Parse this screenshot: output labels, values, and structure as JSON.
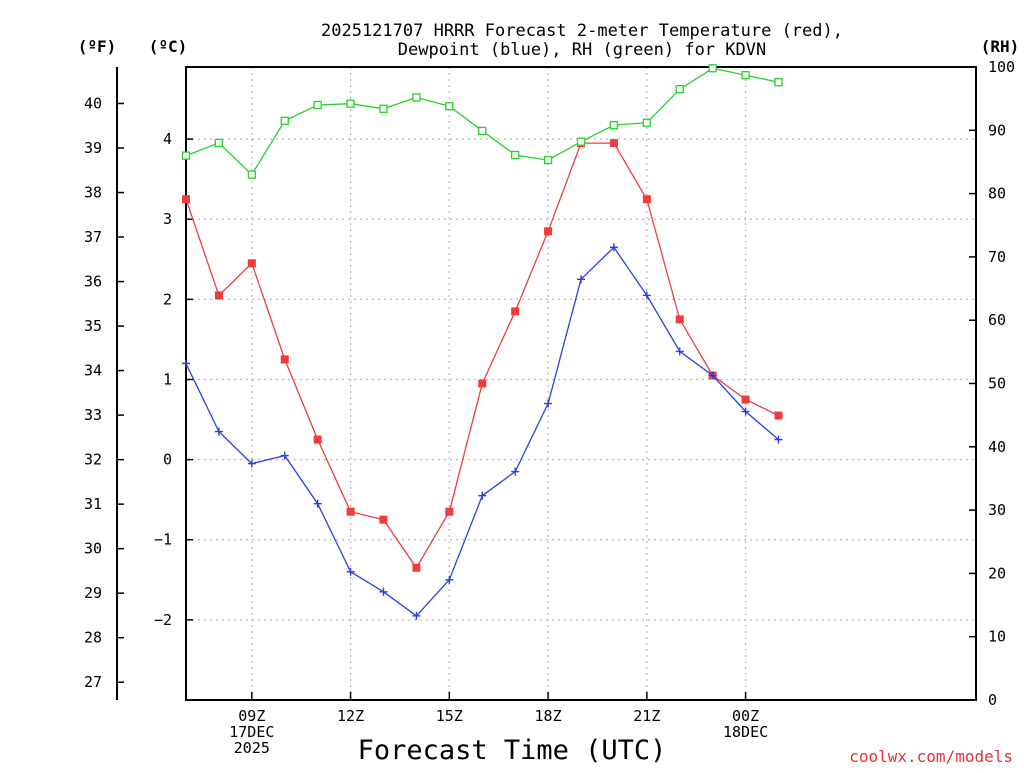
{
  "chart_data": {
    "type": "line",
    "title_lines": [
      "2025121707 HRRR Forecast 2-meter Temperature (red),",
      "Dewpoint (blue), RH (green) for KDVN"
    ],
    "xlabel": "Forecast Time (UTC)",
    "credit": "coolwx.com/models",
    "units": {
      "fahrenheit": "(ºF)",
      "celsius": "(ºC)",
      "rh": "(RH)"
    },
    "x_range": [
      7,
      31
    ],
    "x_ticks": [
      {
        "x": 9,
        "lines": [
          "09Z",
          "17DEC",
          "2025"
        ]
      },
      {
        "x": 12,
        "lines": [
          "12Z"
        ]
      },
      {
        "x": 15,
        "lines": [
          "15Z"
        ]
      },
      {
        "x": 18,
        "lines": [
          "18Z"
        ]
      },
      {
        "x": 21,
        "lines": [
          "21Z"
        ]
      },
      {
        "x": 24,
        "lines": [
          "00Z",
          "18DEC"
        ]
      }
    ],
    "y_celsius": {
      "range": [
        -3.0,
        4.9
      ],
      "ticks": [
        4,
        3,
        2,
        1,
        0,
        -1,
        -2
      ]
    },
    "y_fahrenheit": {
      "ticks": [
        40,
        39,
        38,
        37,
        36,
        35,
        34,
        33,
        32,
        31,
        30,
        29,
        28,
        27
      ]
    },
    "y_rh": {
      "range": [
        0,
        100
      ],
      "ticks": [
        100,
        90,
        80,
        70,
        60,
        50,
        40,
        30,
        20,
        10,
        0
      ]
    },
    "series": [
      {
        "name": "Temperature",
        "axis": "celsius",
        "color": "#f03c3c",
        "marker": "filled-square",
        "x": [
          7,
          8,
          9,
          10,
          11,
          12,
          13,
          14,
          15,
          16,
          17,
          18,
          19,
          20,
          21,
          22,
          23,
          24,
          25
        ],
        "values": [
          3.25,
          2.05,
          2.45,
          1.25,
          0.25,
          -0.65,
          -0.75,
          -1.35,
          -0.65,
          0.95,
          1.85,
          2.85,
          3.95,
          3.95,
          3.25,
          1.75,
          1.05,
          0.75,
          0.55
        ]
      },
      {
        "name": "Dewpoint",
        "axis": "celsius",
        "color": "#2b3fe0",
        "marker": "plus",
        "x": [
          7,
          8,
          9,
          10,
          11,
          12,
          13,
          14,
          15,
          16,
          17,
          18,
          19,
          20,
          21,
          22,
          23,
          24,
          25
        ],
        "values": [
          1.2,
          0.35,
          -0.05,
          0.05,
          -0.55,
          -1.4,
          -1.65,
          -1.95,
          -1.5,
          -0.45,
          -0.15,
          0.7,
          2.25,
          2.65,
          2.05,
          1.35,
          1.05,
          0.6,
          0.25
        ]
      },
      {
        "name": "RH",
        "axis": "rh",
        "color": "#28d028",
        "marker": "open-square",
        "x": [
          7,
          8,
          9,
          10,
          11,
          12,
          13,
          14,
          15,
          16,
          17,
          18,
          19,
          20,
          21,
          22,
          23,
          24,
          25
        ],
        "values": [
          86,
          88,
          83,
          91.5,
          94,
          94.2,
          93.4,
          95.2,
          93.8,
          89.9,
          86.1,
          85.3,
          88.2,
          90.8,
          91.2,
          96.5,
          99.8,
          98.7,
          97.6
        ]
      }
    ]
  }
}
